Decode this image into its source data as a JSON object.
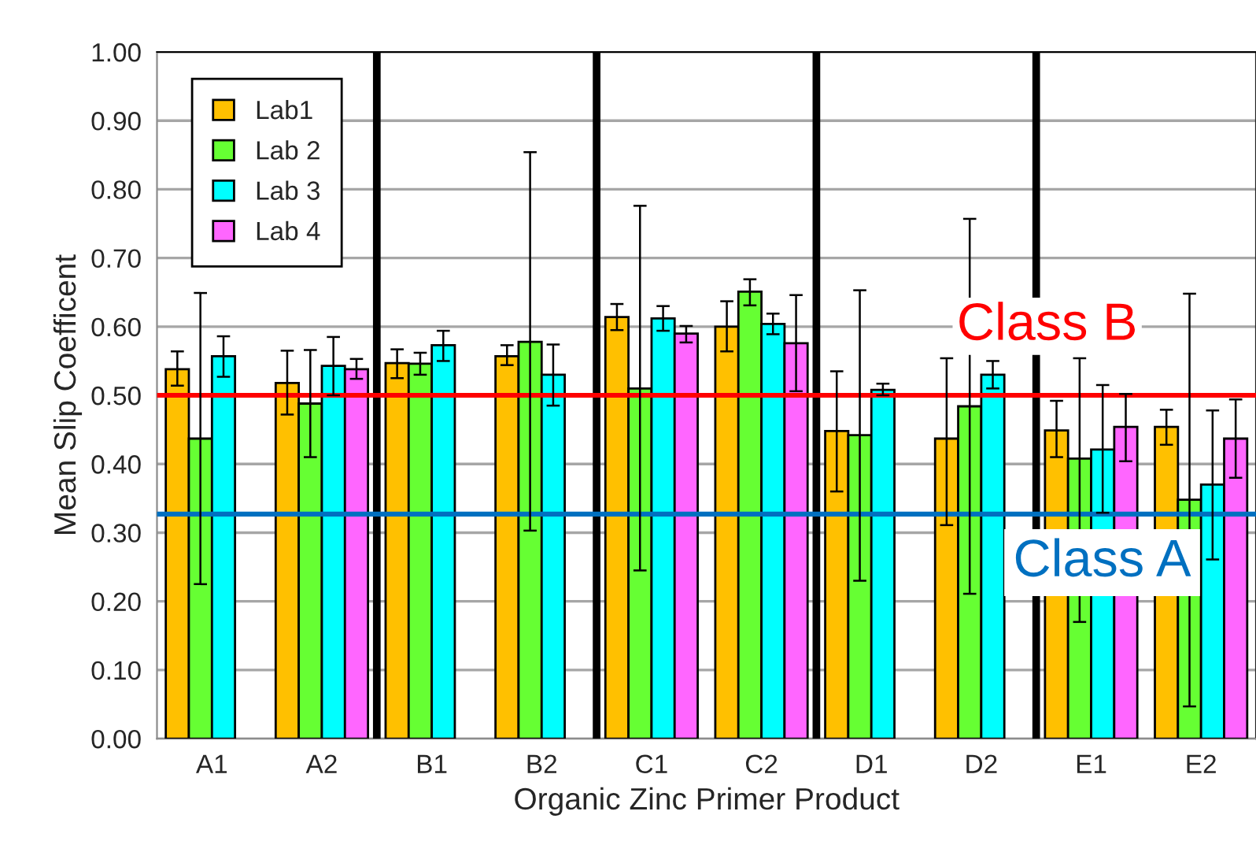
{
  "chart_data": {
    "type": "bar",
    "xlabel": "Organic Zinc Primer Product",
    "ylabel": "Mean Slip Coefficent",
    "categories": [
      "A1",
      "A2",
      "B1",
      "B2",
      "C1",
      "C2",
      "D1",
      "D2",
      "E1",
      "E2"
    ],
    "series": [
      {
        "name": "Lab1",
        "color": "#ffc000",
        "values": [
          0.538,
          0.518,
          0.547,
          0.557,
          0.614,
          0.6,
          0.448,
          0.437,
          0.449,
          0.454
        ],
        "errors": [
          [
            0.514,
            0.564
          ],
          [
            0.472,
            0.565
          ],
          [
            0.525,
            0.567
          ],
          [
            0.544,
            0.573
          ],
          [
            0.595,
            0.633
          ],
          [
            0.564,
            0.637
          ],
          [
            0.36,
            0.535
          ],
          [
            0.311,
            0.554
          ],
          [
            0.41,
            0.492
          ],
          [
            0.428,
            0.479
          ]
        ]
      },
      {
        "name": "Lab 2",
        "color": "#66ff33",
        "values": [
          0.437,
          0.488,
          0.546,
          0.578,
          0.51,
          0.651,
          0.442,
          0.484,
          0.408,
          0.348
        ],
        "errors": [
          [
            0.225,
            0.649
          ],
          [
            0.41,
            0.566
          ],
          [
            0.53,
            0.562
          ],
          [
            0.303,
            0.854
          ],
          [
            0.245,
            0.776
          ],
          [
            0.631,
            0.669
          ],
          [
            0.23,
            0.653
          ],
          [
            0.211,
            0.757
          ],
          [
            0.17,
            0.554
          ],
          [
            0.047,
            0.648
          ]
        ]
      },
      {
        "name": "Lab 3",
        "color": "#00ffff",
        "values": [
          0.557,
          0.543,
          0.573,
          0.53,
          0.612,
          0.604,
          0.508,
          0.53,
          0.421,
          0.37
        ],
        "errors": [
          [
            0.527,
            0.586
          ],
          [
            0.5,
            0.585
          ],
          [
            0.55,
            0.594
          ],
          [
            0.485,
            0.574
          ],
          [
            0.594,
            0.63
          ],
          [
            0.589,
            0.619
          ],
          [
            0.5,
            0.517
          ],
          [
            0.51,
            0.55
          ],
          [
            0.329,
            0.515
          ],
          [
            0.261,
            0.478
          ]
        ]
      },
      {
        "name": "Lab 4",
        "color": "#ff66ff",
        "values": [
          null,
          0.538,
          null,
          null,
          0.59,
          0.576,
          null,
          null,
          0.454,
          0.437
        ],
        "errors": [
          null,
          [
            0.524,
            0.553
          ],
          null,
          null,
          [
            0.577,
            0.601
          ],
          [
            0.506,
            0.646
          ],
          null,
          null,
          [
            0.404,
            0.502
          ],
          [
            0.38,
            0.494
          ]
        ]
      }
    ],
    "ylim": [
      0,
      1
    ],
    "yticks": [
      {
        "value": 0,
        "label": "0.00"
      },
      {
        "value": 0.1,
        "label": "0.10"
      },
      {
        "value": 0.2,
        "label": "0.20"
      },
      {
        "value": 0.3,
        "label": "0.30"
      },
      {
        "value": 0.4,
        "label": "0.40"
      },
      {
        "value": 0.5,
        "label": "0.50"
      },
      {
        "value": 0.6,
        "label": "0.60"
      },
      {
        "value": 0.7,
        "label": "0.70"
      },
      {
        "value": 0.8,
        "label": "0.80"
      },
      {
        "value": 0.9,
        "label": "0.90"
      },
      {
        "value": 1,
        "label": "1.00"
      }
    ],
    "grid": "y",
    "legend": "top left",
    "ref_lines": [
      {
        "axis": "y",
        "value": 0.5,
        "label": "Class B",
        "color": "#ff0000"
      },
      {
        "axis": "y",
        "value": 0.327,
        "label": "Class A",
        "color": "#0070c0"
      }
    ]
  }
}
